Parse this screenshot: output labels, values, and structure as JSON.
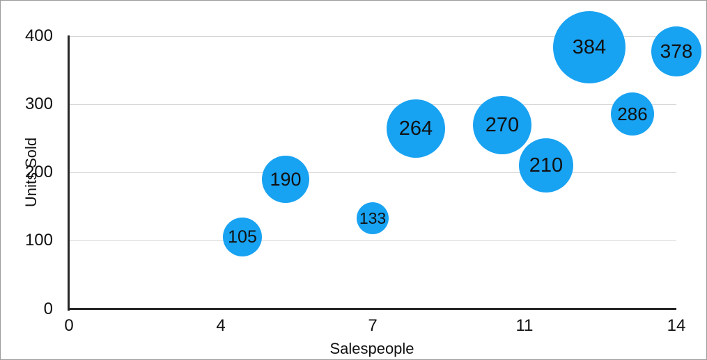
{
  "colors": {
    "bubble": "#18a2f2",
    "grid": "#d6d6d6",
    "axis": "#262626",
    "text": "#111111",
    "background": "#ffffff",
    "frame_border": "#9b9b9b"
  },
  "chart_data": {
    "type": "scatter",
    "subtype": "bubble",
    "title": "",
    "xlabel": "Salespeople",
    "ylabel": "Units Sold",
    "xlim": [
      0,
      14
    ],
    "ylim": [
      0,
      400
    ],
    "grid": "horizontal",
    "legend": "none",
    "x_ticks": [
      {
        "value": 0,
        "label": "0"
      },
      {
        "value": 3.5,
        "label": "4"
      },
      {
        "value": 7,
        "label": "7"
      },
      {
        "value": 10.5,
        "label": "11"
      },
      {
        "value": 14,
        "label": "14"
      }
    ],
    "y_ticks": [
      {
        "value": 0,
        "label": "0"
      },
      {
        "value": 100,
        "label": "100"
      },
      {
        "value": 200,
        "label": "200"
      },
      {
        "value": 300,
        "label": "300"
      },
      {
        "value": 400,
        "label": "400"
      }
    ],
    "series": [
      {
        "name": "Units Sold",
        "points": [
          {
            "x": 4,
            "y": 105,
            "label": "105",
            "radius_px": 28
          },
          {
            "x": 5,
            "y": 190,
            "label": "190",
            "radius_px": 34
          },
          {
            "x": 7,
            "y": 133,
            "label": "133",
            "radius_px": 23
          },
          {
            "x": 8,
            "y": 264,
            "label": "264",
            "radius_px": 42
          },
          {
            "x": 10,
            "y": 270,
            "label": "270",
            "radius_px": 42
          },
          {
            "x": 11,
            "y": 210,
            "label": "210",
            "radius_px": 39
          },
          {
            "x": 12,
            "y": 384,
            "label": "384",
            "radius_px": 52
          },
          {
            "x": 13,
            "y": 286,
            "label": "286",
            "radius_px": 31
          },
          {
            "x": 14,
            "y": 378,
            "label": "378",
            "radius_px": 36
          }
        ]
      }
    ]
  }
}
